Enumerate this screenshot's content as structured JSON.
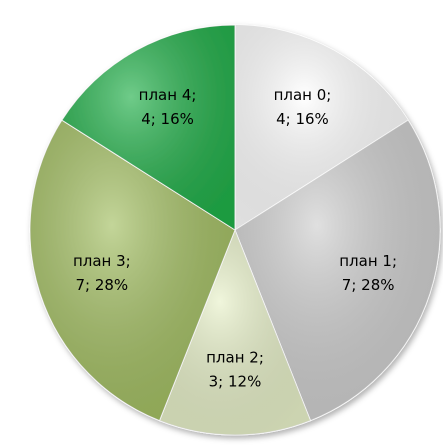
{
  "chart_data": {
    "type": "pie",
    "categories": [
      "план 0;",
      "план 1;",
      "план 2;",
      "план 3;",
      "план 4;"
    ],
    "values": [
      4,
      7,
      3,
      7,
      4
    ],
    "value_labels": [
      "4; 16%",
      "7; 28%",
      "3; 12%",
      "7; 28%",
      "4; 16%"
    ],
    "colors": [
      "#ffffff",
      "#cfcfcf",
      "#e8f1c9",
      "#a3bf62",
      "#22b04a"
    ]
  }
}
